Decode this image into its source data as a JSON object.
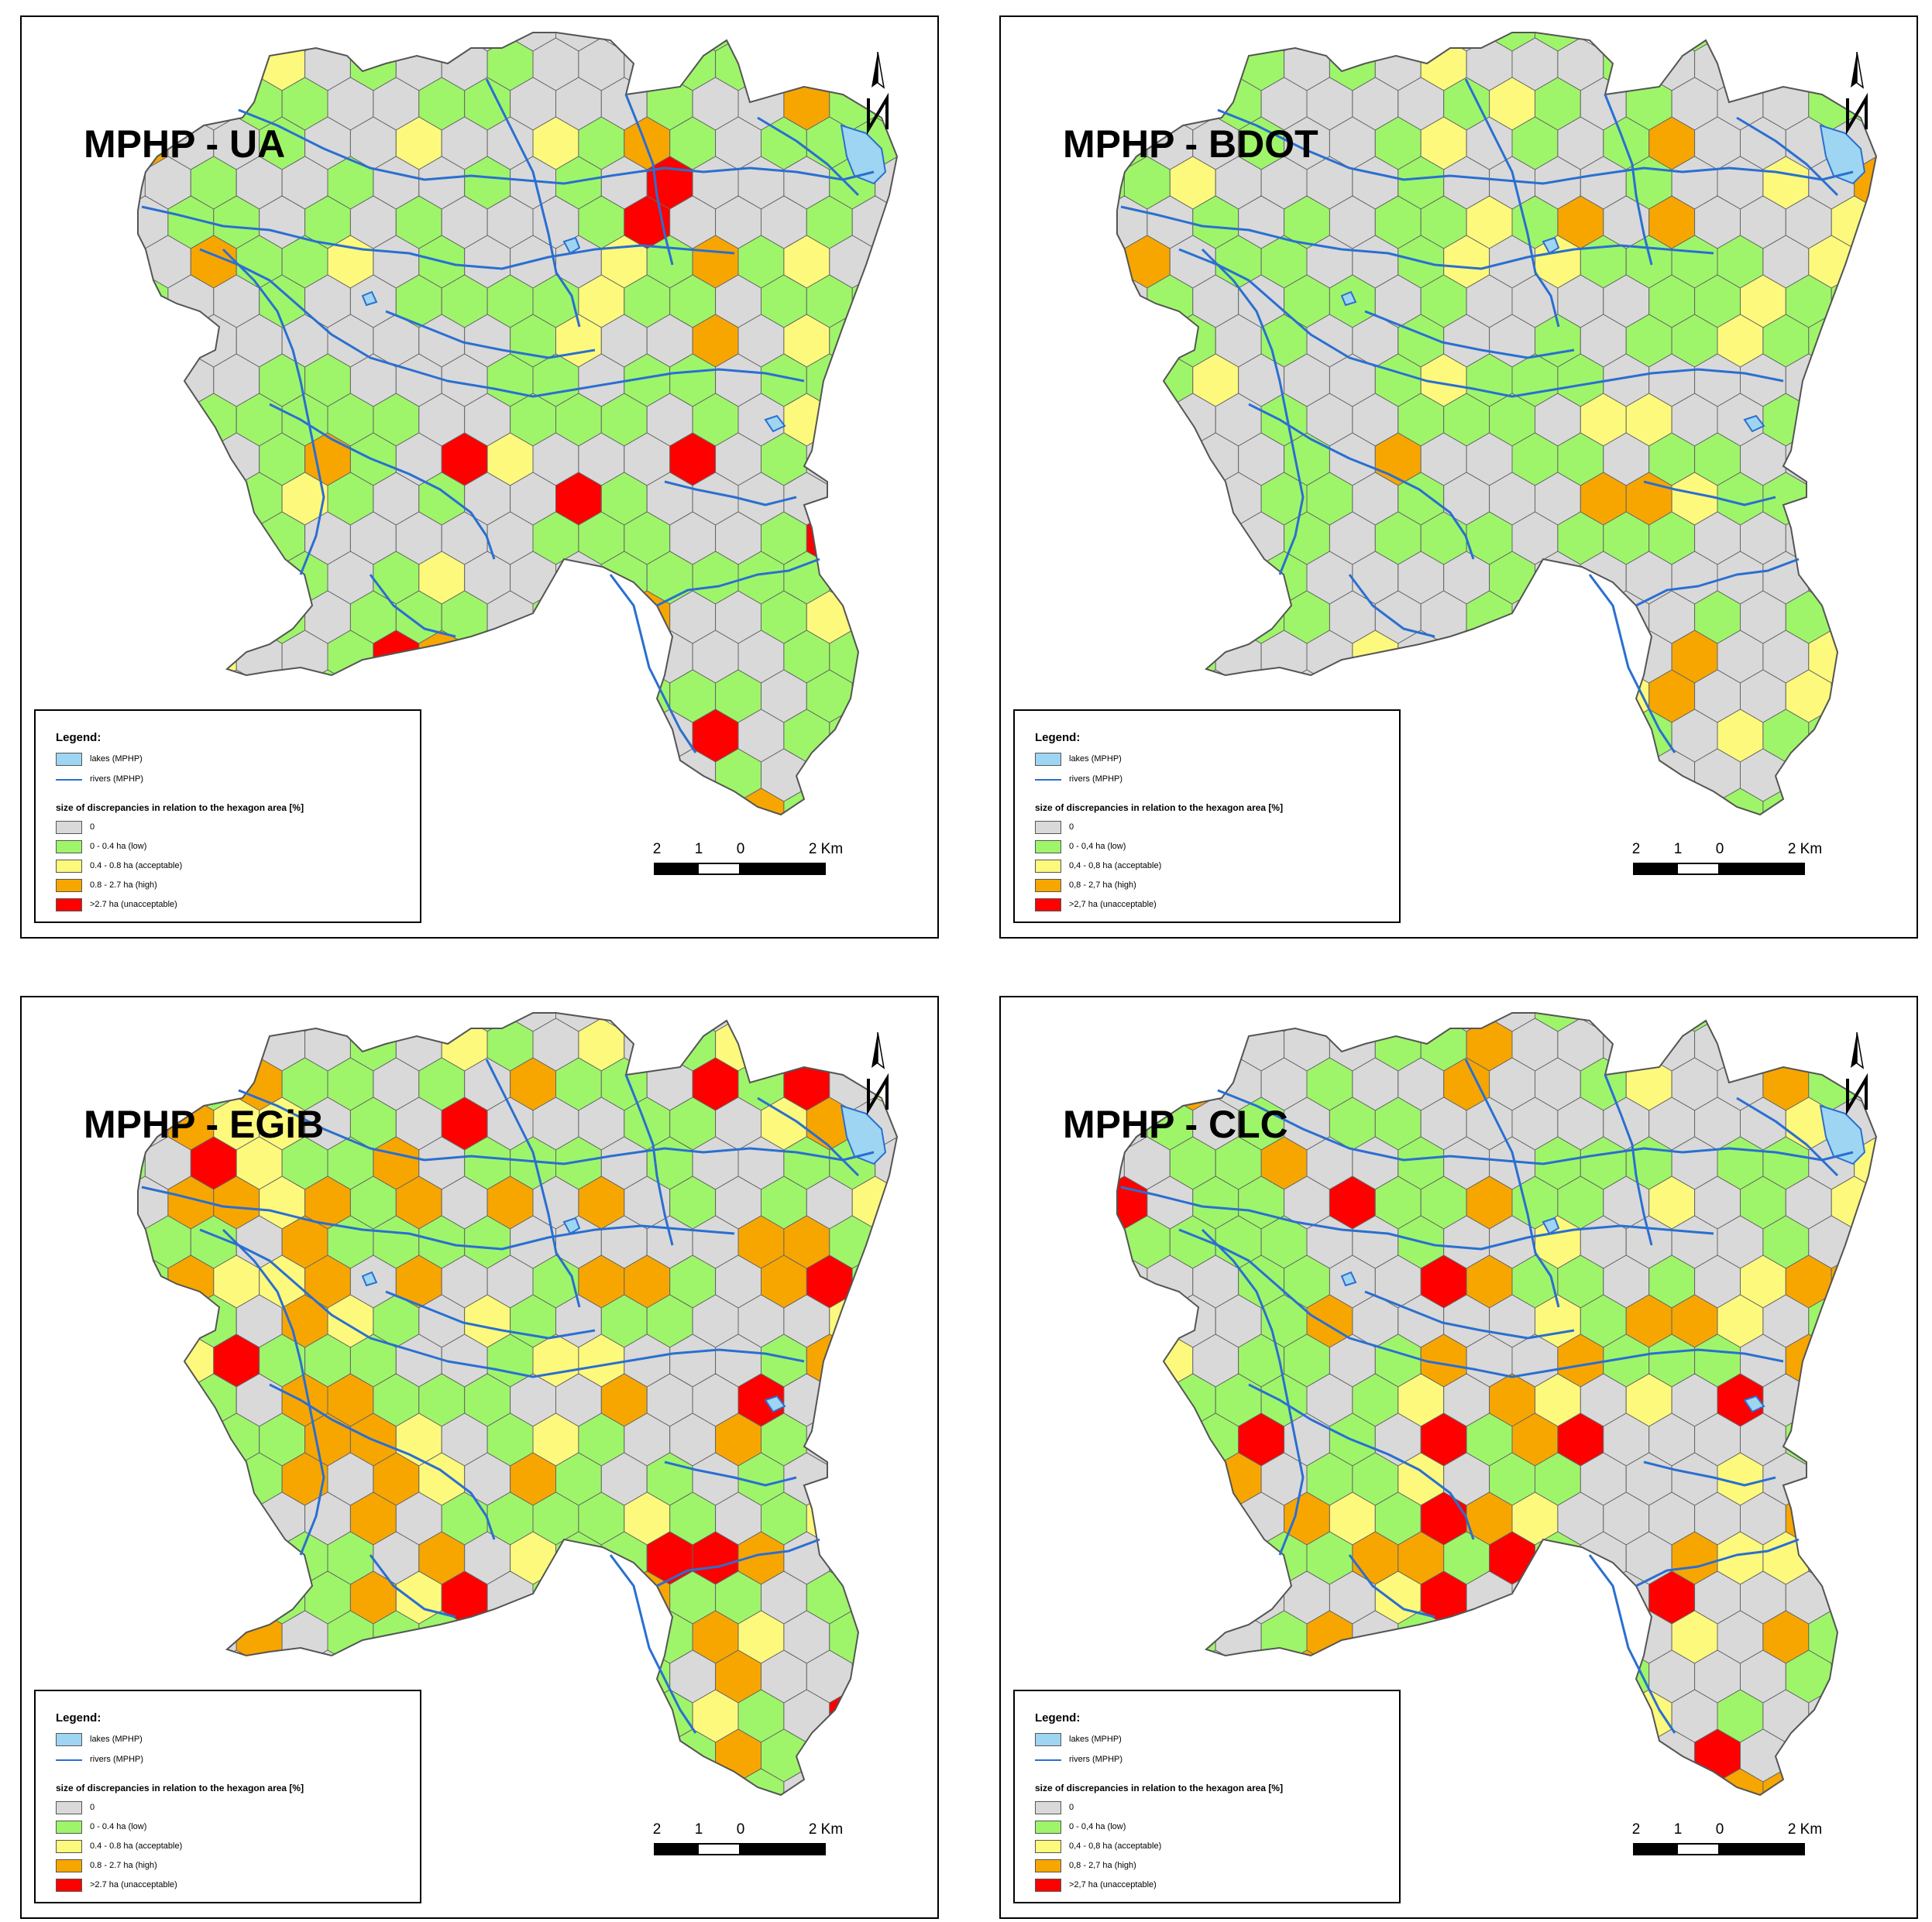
{
  "panels": [
    {
      "title": "MPHP - UA",
      "palette_key": "ua"
    },
    {
      "title": "MPHP - BDOT",
      "palette_key": "bdot"
    },
    {
      "title": "MPHP - EGiB",
      "palette_key": "egib"
    },
    {
      "title": "MPHP - CLC",
      "palette_key": "clc"
    }
  ],
  "legend_variants": {
    "ua": {
      "title": "Legend:",
      "lakes": "lakes (MPHP)",
      "rivers": "rivers (MPHP)",
      "subtitle": "size of discrepancies in relation to the hexagon area [%]",
      "class_0": "0",
      "class_1": "0 - 0.4 ha (low)",
      "class_2": "0.4 - 0.8 ha (acceptable)",
      "class_3": "0.8 - 2.7 ha (high)",
      "class_4": ">2.7 ha (unacceptable)"
    },
    "bdot": {
      "title": "Legend:",
      "lakes": "lakes (MPHP)",
      "rivers": "rivers (MPHP)",
      "subtitle": "size of discrepancies in relation to the hexagon area [%]",
      "class_0": "0",
      "class_1": "0 - 0,4 ha (low)",
      "class_2": "0,4 - 0,8 ha (acceptable)",
      "class_3": "0,8 - 2,7 ha (high)",
      "class_4": ">2,7 ha (unacceptable)"
    },
    "egib": {
      "title": "Legend:",
      "lakes": "lakes (MPHP)",
      "rivers": "rivers (MPHP)",
      "subtitle": "size of discrepancies in relation to the hexagon area [%]",
      "class_0": "0",
      "class_1": "0 - 0.4 ha (low)",
      "class_2": "0.4 - 0.8 ha (acceptable)",
      "class_3": "0.8 - 2.7 ha (high)",
      "class_4": ">2.7 ha (unacceptable)"
    },
    "clc": {
      "title": "Legend:",
      "lakes": "lakes (MPHP)",
      "rivers": "rivers (MPHP)",
      "subtitle": "size of discrepancies in relation to the hexagon area [%]",
      "class_0": "0",
      "class_1": "0 - 0,4 ha (low)",
      "class_2": "0,4 - 0,8 ha (acceptable)",
      "class_3": "0,8 - 2,7 ha (high)",
      "class_4": ">2,7 ha (unacceptable)"
    }
  },
  "scale": {
    "labels": [
      "2",
      "1",
      "0",
      "2 Km"
    ]
  },
  "colors": {
    "class_0": "#d9d9d9",
    "class_1": "#9ef56a",
    "class_2": "#fdf97c",
    "class_3": "#f7a600",
    "class_4": "#ff0000",
    "lakes": "#9ed5f2",
    "rivers": "#2a6fd1",
    "hex_border": "#666666",
    "boundary": "#555555"
  }
}
